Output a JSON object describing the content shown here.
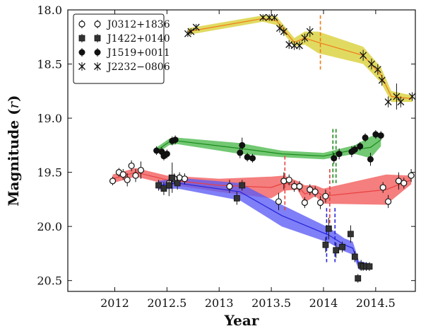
{
  "chart_data": {
    "type": "scatter",
    "xlabel": "Year",
    "ylabel": "Magnitude (r)",
    "ylabel_main": "Magnitude",
    "ylabel_var": "r",
    "xlim": [
      2011.55,
      2014.88
    ],
    "ylim": [
      20.6,
      18.0
    ],
    "x_ticks": [
      2012,
      2012.5,
      2013,
      2013.5,
      2014,
      2014.5
    ],
    "x_tick_labels": [
      "2012",
      "2012.5",
      "2013",
      "2013.5",
      "2014",
      "2014.5"
    ],
    "y_ticks": [
      18.0,
      18.5,
      19.0,
      19.5,
      20.0,
      20.5
    ],
    "y_tick_labels": [
      "18.0",
      "18.5",
      "19.0",
      "19.5",
      "20.0",
      "20.5"
    ],
    "grid": false,
    "legend_position": "top-left",
    "series": [
      {
        "name": "J0312+1836",
        "marker": "open-circle",
        "band_color": "#f25a5a",
        "line_color": "#e84141",
        "points": [
          {
            "x": 2011.98,
            "y": 19.58,
            "err": 0.04
          },
          {
            "x": 2012.04,
            "y": 19.5,
            "err": 0.04
          },
          {
            "x": 2012.08,
            "y": 19.52,
            "err": 0.05
          },
          {
            "x": 2012.12,
            "y": 19.57,
            "err": 0.06
          },
          {
            "x": 2012.16,
            "y": 19.44,
            "err": 0.05
          },
          {
            "x": 2012.2,
            "y": 19.53,
            "err": 0.06
          },
          {
            "x": 2012.25,
            "y": 19.48,
            "err": 0.08
          },
          {
            "x": 2012.52,
            "y": 19.6,
            "err": 0.05
          },
          {
            "x": 2012.57,
            "y": 19.56,
            "err": 0.05
          },
          {
            "x": 2012.62,
            "y": 19.55,
            "err": 0.05
          },
          {
            "x": 2012.67,
            "y": 19.56,
            "err": 0.05
          },
          {
            "x": 2013.1,
            "y": 19.63,
            "err": 0.06
          },
          {
            "x": 2013.57,
            "y": 19.77,
            "err": 0.08
          },
          {
            "x": 2013.62,
            "y": 19.58,
            "err": 0.08
          },
          {
            "x": 2013.67,
            "y": 19.57,
            "err": 0.05
          },
          {
            "x": 2013.72,
            "y": 19.63,
            "err": 0.05
          },
          {
            "x": 2013.77,
            "y": 19.63,
            "err": 0.05
          },
          {
            "x": 2013.82,
            "y": 19.78,
            "err": 0.05
          },
          {
            "x": 2013.87,
            "y": 19.66,
            "err": 0.05
          },
          {
            "x": 2013.92,
            "y": 19.68,
            "err": 0.05
          },
          {
            "x": 2013.97,
            "y": 19.78,
            "err": 0.06
          },
          {
            "x": 2014.02,
            "y": 19.72,
            "err": 0.06
          },
          {
            "x": 2014.57,
            "y": 19.64,
            "err": 0.05
          },
          {
            "x": 2014.62,
            "y": 19.77,
            "err": 0.06
          },
          {
            "x": 2014.72,
            "y": 19.58,
            "err": 0.08
          },
          {
            "x": 2014.77,
            "y": 19.6,
            "err": 0.05
          },
          {
            "x": 2014.84,
            "y": 19.53,
            "err": 0.06
          }
        ],
        "trend": [
          {
            "x": 2011.98,
            "y": 19.56,
            "w": 0.04
          },
          {
            "x": 2012.2,
            "y": 19.5,
            "w": 0.04
          },
          {
            "x": 2012.5,
            "y": 19.57,
            "w": 0.04
          },
          {
            "x": 2013.0,
            "y": 19.62,
            "w": 0.06
          },
          {
            "x": 2013.5,
            "y": 19.64,
            "w": 0.1
          },
          {
            "x": 2013.62,
            "y": 19.6,
            "w": 0.07
          },
          {
            "x": 2013.75,
            "y": 19.62,
            "w": 0.04
          },
          {
            "x": 2013.82,
            "y": 19.7,
            "w": 0.08
          },
          {
            "x": 2013.92,
            "y": 19.67,
            "w": 0.05
          },
          {
            "x": 2014.0,
            "y": 19.72,
            "w": 0.07
          },
          {
            "x": 2014.6,
            "y": 19.66,
            "w": 0.14
          },
          {
            "x": 2014.84,
            "y": 19.57,
            "w": 0.04
          }
        ],
        "change_points": [
          2013.63,
          2014.06
        ]
      },
      {
        "name": "J1422+0140",
        "marker": "filled-square",
        "band_color": "#5b5bf5",
        "line_color": "#2424d8",
        "points": [
          {
            "x": 2012.42,
            "y": 19.62,
            "err": 0.05
          },
          {
            "x": 2012.47,
            "y": 19.65,
            "err": 0.06
          },
          {
            "x": 2012.52,
            "y": 19.62,
            "err": 0.1
          },
          {
            "x": 2012.55,
            "y": 19.55,
            "err": 0.14
          },
          {
            "x": 2012.6,
            "y": 19.6,
            "err": 0.06
          },
          {
            "x": 2013.17,
            "y": 19.74,
            "err": 0.06
          },
          {
            "x": 2013.22,
            "y": 19.62,
            "err": 0.05
          },
          {
            "x": 2014.02,
            "y": 20.17,
            "err": 0.07
          },
          {
            "x": 2014.05,
            "y": 20.02,
            "err": 0.1
          },
          {
            "x": 2014.12,
            "y": 20.22,
            "err": 0.07
          },
          {
            "x": 2014.18,
            "y": 20.19,
            "err": 0.05
          },
          {
            "x": 2014.26,
            "y": 20.07,
            "err": 0.08
          },
          {
            "x": 2014.3,
            "y": 20.28,
            "err": 0.05
          },
          {
            "x": 2014.33,
            "y": 20.48,
            "err": 0.04
          },
          {
            "x": 2014.36,
            "y": 20.36,
            "err": 0.05
          },
          {
            "x": 2014.38,
            "y": 20.37,
            "err": 0.04
          },
          {
            "x": 2014.41,
            "y": 20.37,
            "err": 0.04
          },
          {
            "x": 2014.44,
            "y": 20.37,
            "err": 0.04
          }
        ],
        "trend": [
          {
            "x": 2012.42,
            "y": 19.62,
            "w": 0.04
          },
          {
            "x": 2012.6,
            "y": 19.6,
            "w": 0.05
          },
          {
            "x": 2013.2,
            "y": 19.68,
            "w": 0.08
          },
          {
            "x": 2013.6,
            "y": 19.9,
            "w": 0.1
          },
          {
            "x": 2014.05,
            "y": 20.08,
            "w": 0.07
          },
          {
            "x": 2014.2,
            "y": 20.17,
            "w": 0.06
          },
          {
            "x": 2014.28,
            "y": 20.2,
            "w": 0.06
          },
          {
            "x": 2014.34,
            "y": 20.36,
            "w": 0.04
          },
          {
            "x": 2014.44,
            "y": 20.37,
            "w": 0.03
          }
        ],
        "change_points": [
          2014.03,
          2014.11
        ]
      },
      {
        "name": "J1519+0011",
        "marker": "filled-circle",
        "band_color": "#4cb84c",
        "line_color": "#1a8a1a",
        "points": [
          {
            "x": 2012.4,
            "y": 19.3,
            "err": 0.04
          },
          {
            "x": 2012.45,
            "y": 19.31,
            "err": 0.04
          },
          {
            "x": 2012.47,
            "y": 19.35,
            "err": 0.04
          },
          {
            "x": 2012.5,
            "y": 19.33,
            "err": 0.04
          },
          {
            "x": 2012.55,
            "y": 19.21,
            "err": 0.04
          },
          {
            "x": 2012.58,
            "y": 19.2,
            "err": 0.04
          },
          {
            "x": 2013.2,
            "y": 19.32,
            "err": 0.05
          },
          {
            "x": 2013.22,
            "y": 19.25,
            "err": 0.07
          },
          {
            "x": 2013.27,
            "y": 19.36,
            "err": 0.04
          },
          {
            "x": 2013.32,
            "y": 19.37,
            "err": 0.04
          },
          {
            "x": 2014.1,
            "y": 19.37,
            "err": 0.05
          },
          {
            "x": 2014.15,
            "y": 19.33,
            "err": 0.05
          },
          {
            "x": 2014.27,
            "y": 19.31,
            "err": 0.05
          },
          {
            "x": 2014.3,
            "y": 19.29,
            "err": 0.04
          },
          {
            "x": 2014.35,
            "y": 19.26,
            "err": 0.04
          },
          {
            "x": 2014.4,
            "y": 19.18,
            "err": 0.04
          },
          {
            "x": 2014.45,
            "y": 19.38,
            "err": 0.06
          },
          {
            "x": 2014.5,
            "y": 19.15,
            "err": 0.04
          },
          {
            "x": 2014.55,
            "y": 19.16,
            "err": 0.04
          }
        ],
        "trend": [
          {
            "x": 2012.4,
            "y": 19.3,
            "w": 0.03
          },
          {
            "x": 2012.52,
            "y": 19.22,
            "w": 0.03
          },
          {
            "x": 2012.6,
            "y": 19.21,
            "w": 0.03
          },
          {
            "x": 2013.2,
            "y": 19.28,
            "w": 0.05
          },
          {
            "x": 2013.6,
            "y": 19.33,
            "w": 0.03
          },
          {
            "x": 2014.0,
            "y": 19.35,
            "w": 0.03
          },
          {
            "x": 2014.3,
            "y": 19.29,
            "w": 0.04
          },
          {
            "x": 2014.45,
            "y": 19.27,
            "w": 0.1
          },
          {
            "x": 2014.55,
            "y": 19.2,
            "w": 0.06
          }
        ],
        "change_points": [
          2014.09,
          2014.12
        ]
      },
      {
        "name": "J2232−0806",
        "marker": "x",
        "band_color": "#d8d034",
        "line_color": "#f07a16",
        "points": [
          {
            "x": 2012.7,
            "y": 18.22,
            "err": 0.03
          },
          {
            "x": 2012.73,
            "y": 18.2,
            "err": 0.03
          },
          {
            "x": 2012.78,
            "y": 18.16,
            "err": 0.03
          },
          {
            "x": 2013.42,
            "y": 18.07,
            "err": 0.03
          },
          {
            "x": 2013.48,
            "y": 18.07,
            "err": 0.03
          },
          {
            "x": 2013.53,
            "y": 18.07,
            "err": 0.03
          },
          {
            "x": 2013.58,
            "y": 18.17,
            "err": 0.04
          },
          {
            "x": 2013.62,
            "y": 18.2,
            "err": 0.04
          },
          {
            "x": 2013.67,
            "y": 18.32,
            "err": 0.04
          },
          {
            "x": 2013.72,
            "y": 18.33,
            "err": 0.04
          },
          {
            "x": 2013.77,
            "y": 18.33,
            "err": 0.04
          },
          {
            "x": 2013.82,
            "y": 18.26,
            "err": 0.04
          },
          {
            "x": 2013.87,
            "y": 18.2,
            "err": 0.05
          },
          {
            "x": 2014.38,
            "y": 18.42,
            "err": 0.05
          },
          {
            "x": 2014.46,
            "y": 18.5,
            "err": 0.05
          },
          {
            "x": 2014.52,
            "y": 18.55,
            "err": 0.05
          },
          {
            "x": 2014.56,
            "y": 18.65,
            "err": 0.05
          },
          {
            "x": 2014.62,
            "y": 18.85,
            "err": 0.05
          },
          {
            "x": 2014.7,
            "y": 18.8,
            "err": 0.12
          },
          {
            "x": 2014.74,
            "y": 18.85,
            "err": 0.05
          },
          {
            "x": 2014.85,
            "y": 18.8,
            "err": 0.04
          }
        ],
        "trend": [
          {
            "x": 2012.7,
            "y": 18.2,
            "w": 0.03
          },
          {
            "x": 2013.42,
            "y": 18.08,
            "w": 0.03
          },
          {
            "x": 2013.55,
            "y": 18.1,
            "w": 0.04
          },
          {
            "x": 2013.72,
            "y": 18.3,
            "w": 0.04
          },
          {
            "x": 2013.82,
            "y": 18.26,
            "w": 0.06
          },
          {
            "x": 2013.95,
            "y": 18.3,
            "w": 0.1
          },
          {
            "x": 2014.38,
            "y": 18.42,
            "w": 0.08
          },
          {
            "x": 2014.55,
            "y": 18.6,
            "w": 0.07
          },
          {
            "x": 2014.65,
            "y": 18.8,
            "w": 0.05
          },
          {
            "x": 2014.85,
            "y": 18.82,
            "w": 0.03
          }
        ],
        "change_points": [
          2013.97
        ]
      }
    ]
  }
}
